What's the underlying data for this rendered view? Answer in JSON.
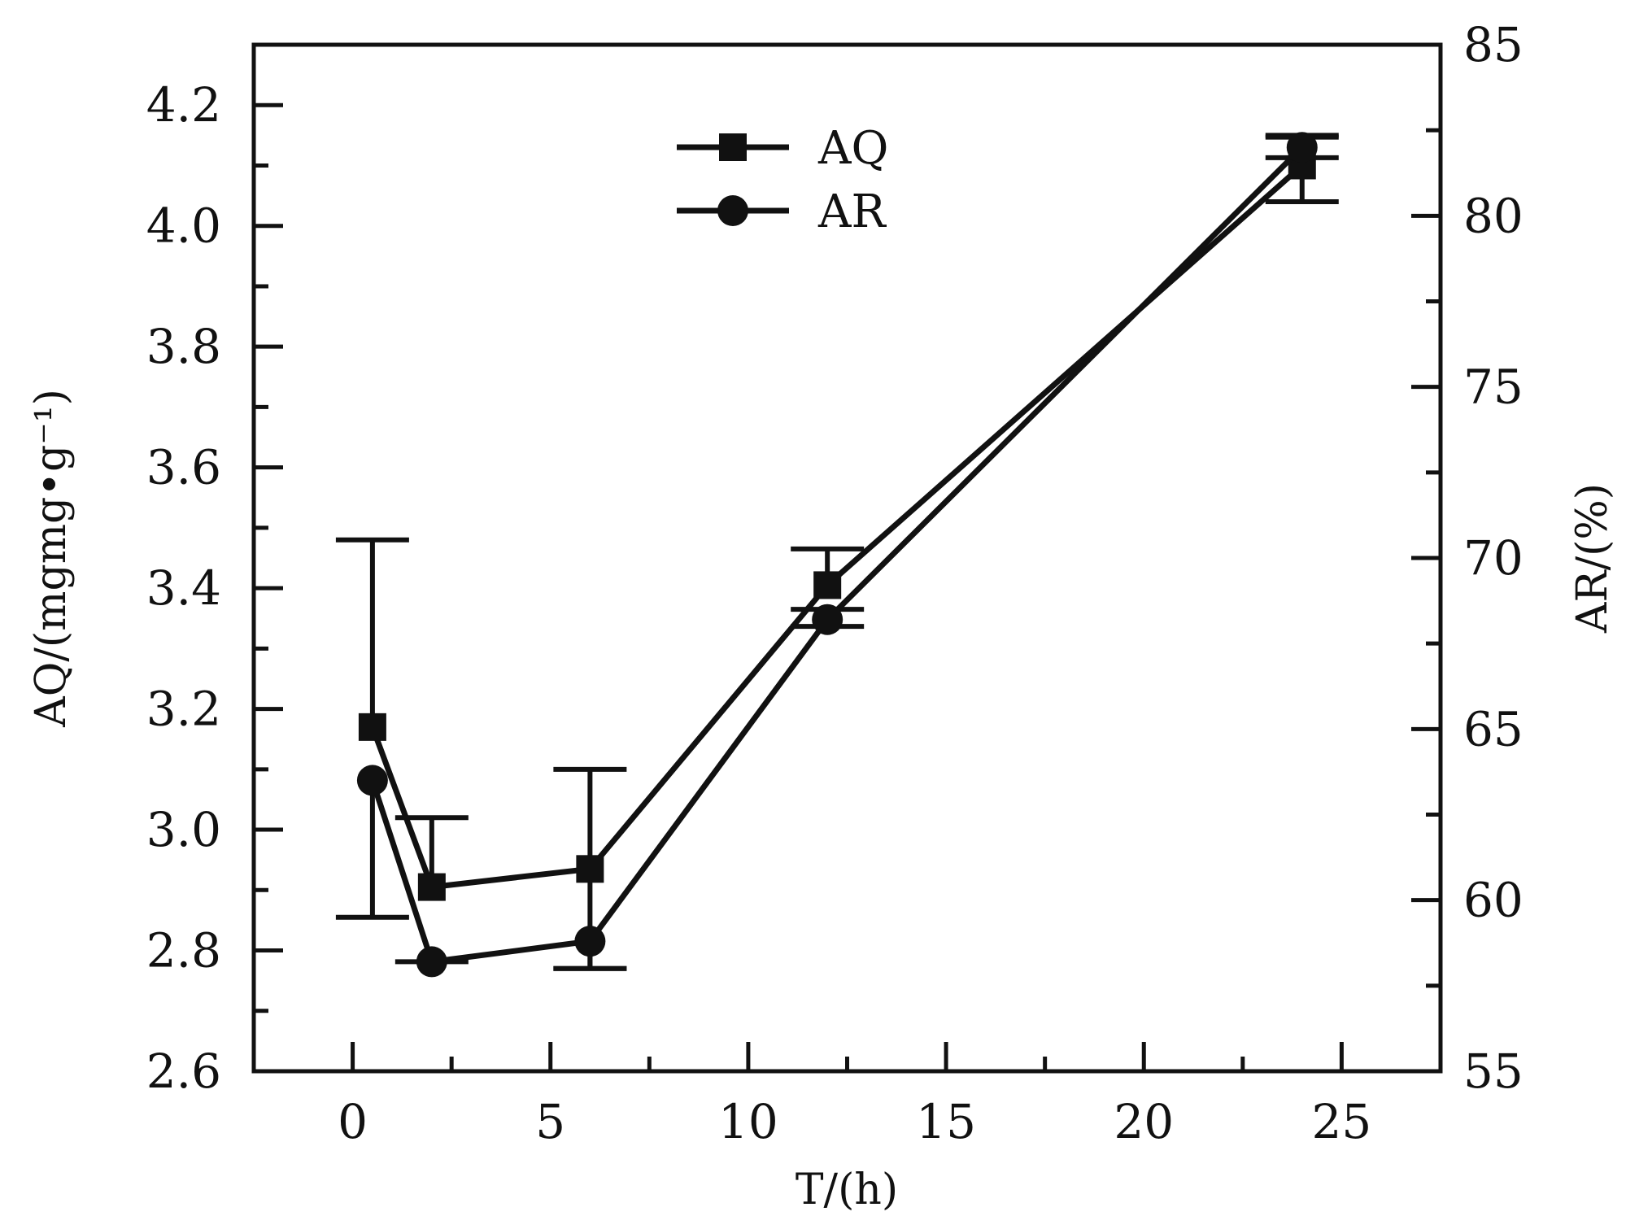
{
  "chart_data": {
    "type": "line",
    "xlabel": "T/(h)",
    "ylabel_left": "AQ/(mgmg•g⁻¹)",
    "ylabel_right": "AR/(%)",
    "xlim": [
      -2.5,
      27.5
    ],
    "xticks": [
      0,
      5,
      10,
      15,
      20,
      25
    ],
    "ylim_left": [
      2.6,
      4.3
    ],
    "yticks_left": [
      "2.6",
      "2.8",
      "3.0",
      "3.2",
      "3.4",
      "3.6",
      "3.8",
      "4.0",
      "4.2"
    ],
    "ylim_right": [
      55,
      85
    ],
    "yticks_right": [
      "55",
      "60",
      "65",
      "70",
      "75",
      "80",
      "85"
    ],
    "grid": false,
    "legend_position": "top-center",
    "series": [
      {
        "name": "AQ",
        "axis": "left",
        "marker": "square",
        "x": [
          0.5,
          2,
          6,
          12,
          24
        ],
        "y": [
          3.17,
          2.905,
          2.935,
          3.405,
          4.1
        ],
        "err_upper": [
          3.48,
          3.02,
          3.1,
          3.465,
          4.15
        ],
        "err_lower": [
          null,
          null,
          2.77,
          null,
          4.04
        ]
      },
      {
        "name": "AR",
        "axis": "right",
        "marker": "circle",
        "x": [
          0.5,
          2,
          6,
          12,
          24
        ],
        "y": [
          63.5,
          58.2,
          58.8,
          68.2,
          82.0
        ],
        "err_upper": [
          null,
          null,
          null,
          68.5,
          82.3
        ],
        "err_lower": [
          59.5,
          58.2,
          58.0,
          68.0,
          81.7
        ]
      }
    ]
  }
}
